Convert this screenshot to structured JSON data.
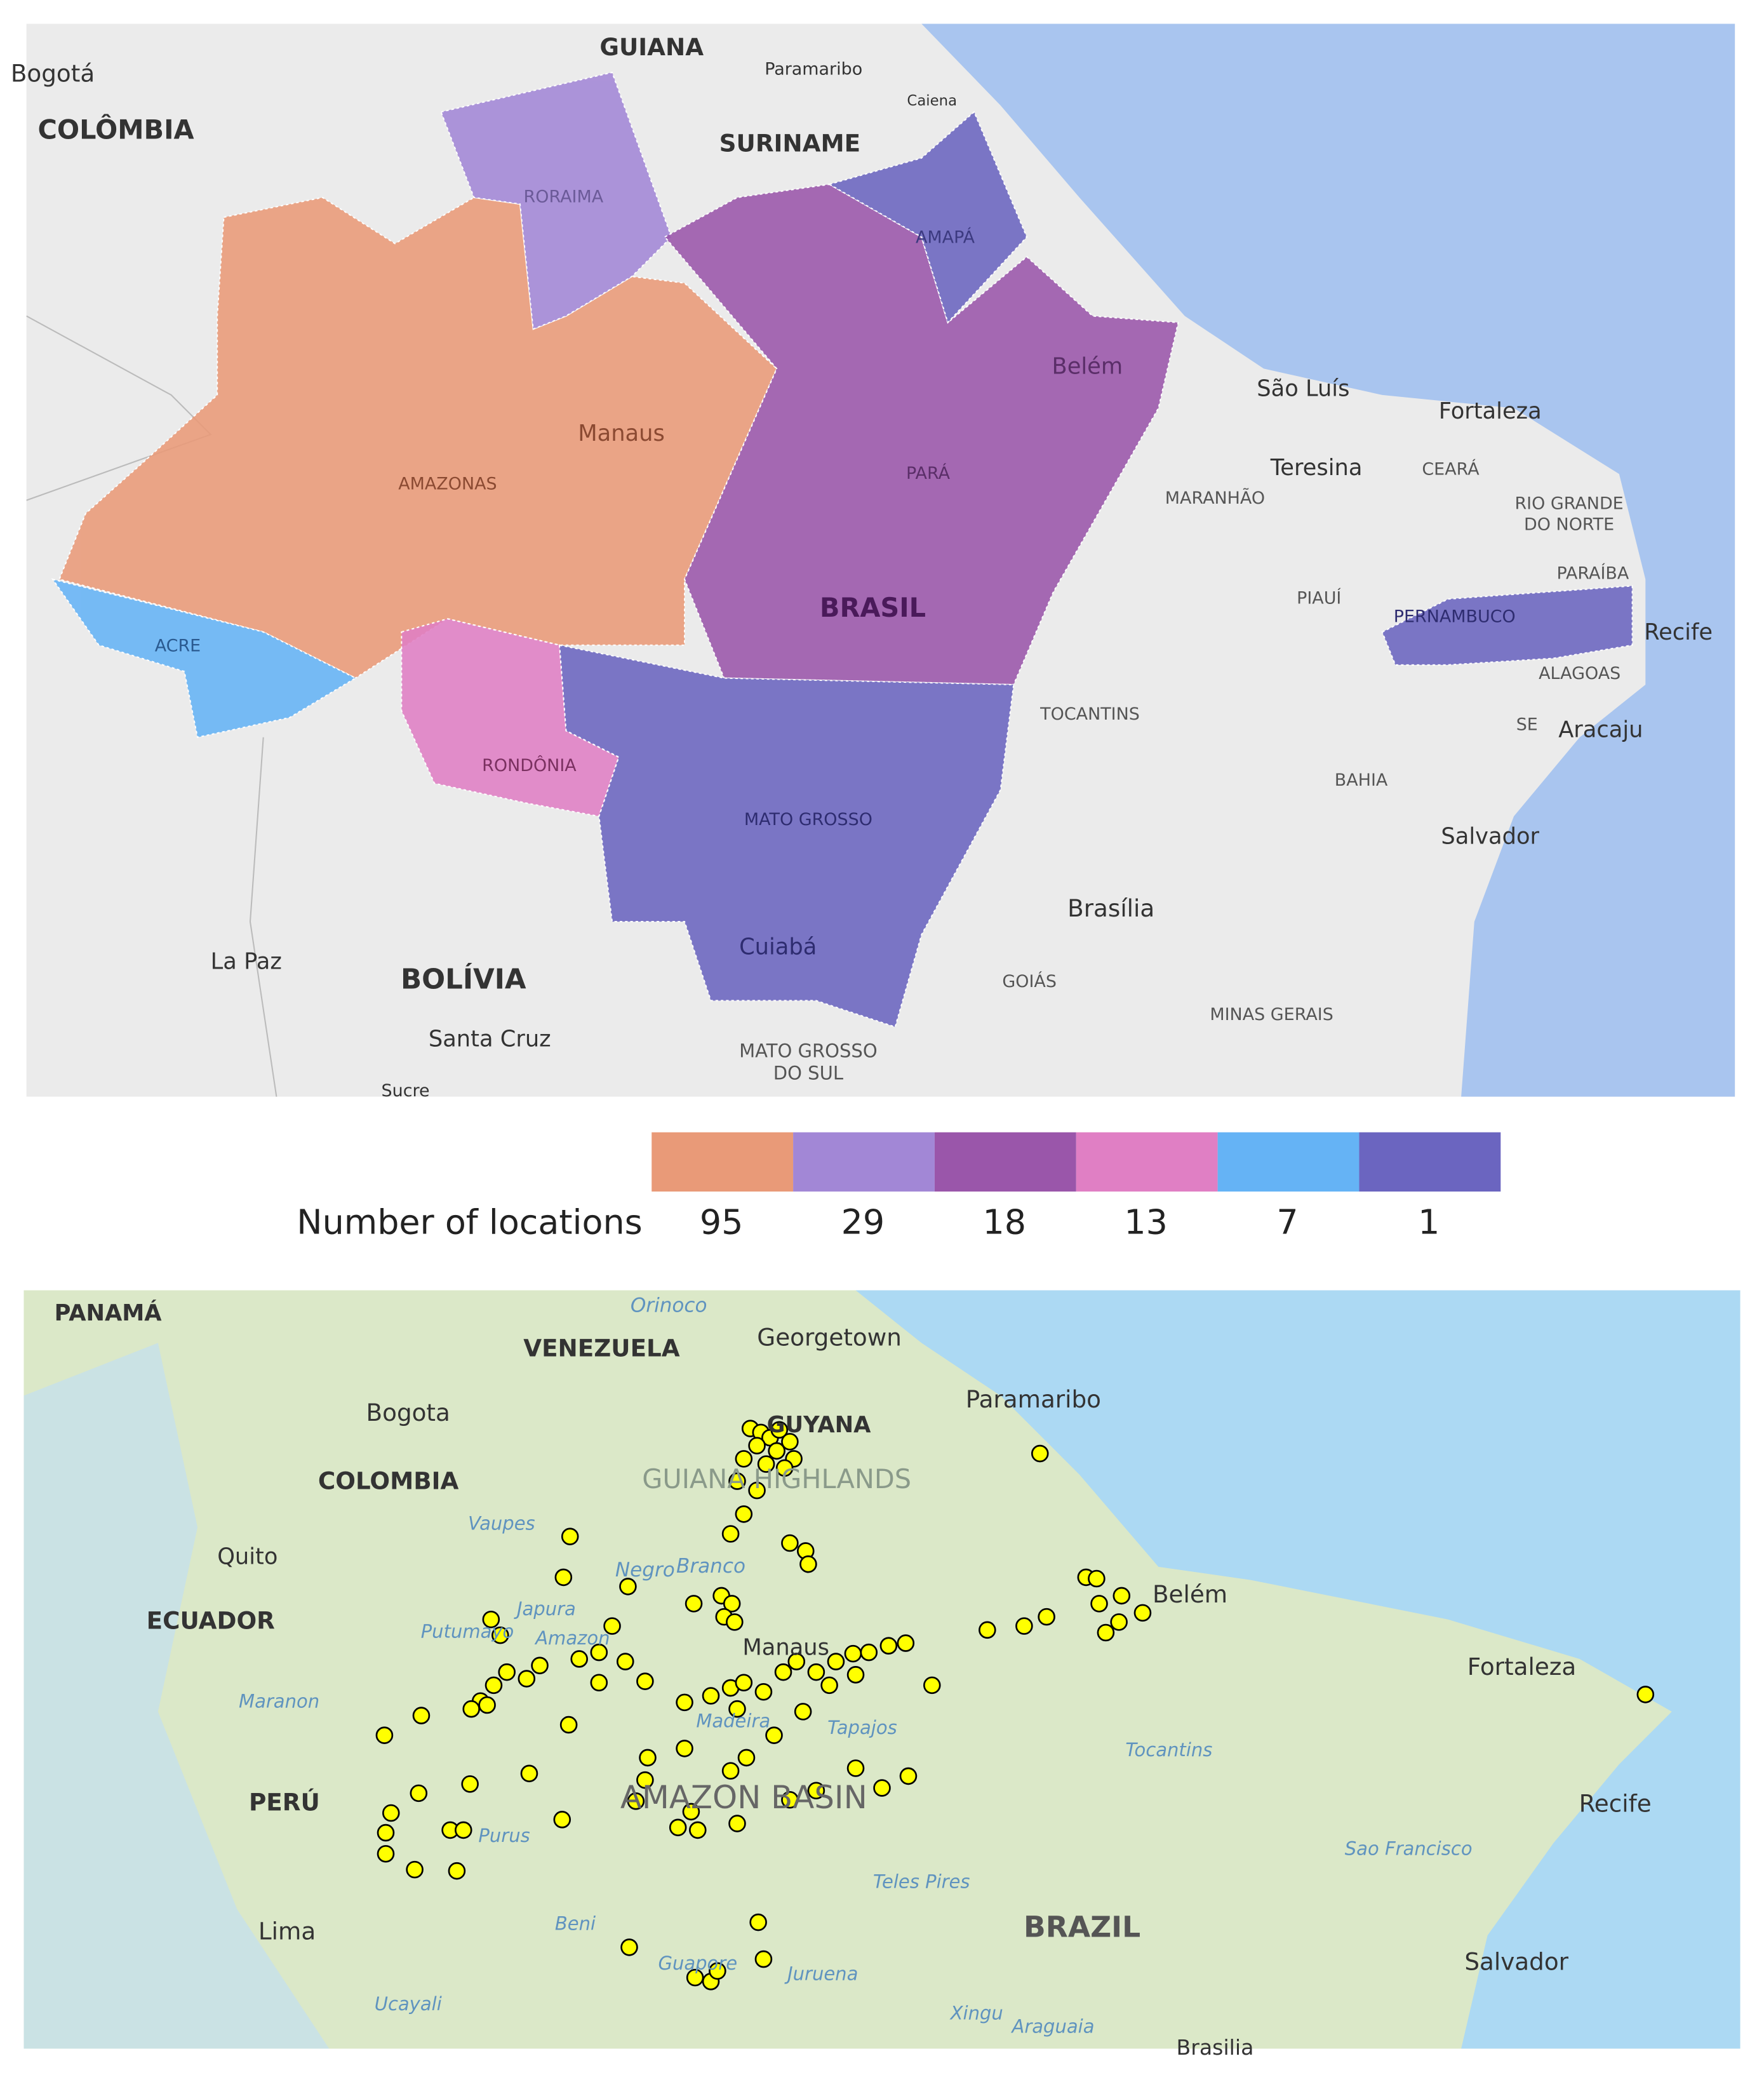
{
  "top_map": {
    "labels": [
      {
        "text": "Bogotá"
      },
      {
        "text": "GUIANA"
      },
      {
        "text": "Paramaribo"
      },
      {
        "text": "COLÔMBIA"
      },
      {
        "text": "SURINAME"
      },
      {
        "text": "Caiena"
      },
      {
        "text": "RORAIMA"
      },
      {
        "text": "AMAPÁ"
      },
      {
        "text": "Belém"
      },
      {
        "text": "São Luís"
      },
      {
        "text": "Fortaleza"
      },
      {
        "text": "Manaus"
      },
      {
        "text": "PARÁ"
      },
      {
        "text": "AMAZONAS"
      },
      {
        "text": "Teresina"
      },
      {
        "text": "CEARÁ"
      },
      {
        "text": "MARANHÃO"
      },
      {
        "text": "RIO GRANDE"
      },
      {
        "text": "DO NORTE"
      },
      {
        "text": "PARAÍBA"
      },
      {
        "text": "PIAUÍ"
      },
      {
        "text": "BRASIL"
      },
      {
        "text": "PERNAMBUCO"
      },
      {
        "text": "Recife"
      },
      {
        "text": "ACRE"
      },
      {
        "text": "ALAGOAS"
      },
      {
        "text": "TOCANTINS"
      },
      {
        "text": "SE"
      },
      {
        "text": "Aracaju"
      },
      {
        "text": "RONDÔNIA"
      },
      {
        "text": "BAHIA"
      },
      {
        "text": "MATO GROSSO"
      },
      {
        "text": "Salvador"
      },
      {
        "text": "Brasília"
      },
      {
        "text": "La Paz"
      },
      {
        "text": "BOLÍVIA"
      },
      {
        "text": "Cuiabá"
      },
      {
        "text": "GOIÁS"
      },
      {
        "text": "MINAS GERAIS"
      },
      {
        "text": "Santa Cruz"
      },
      {
        "text": "MATO GROSSO"
      },
      {
        "text": "DO SUL"
      },
      {
        "text": "Sucre"
      }
    ],
    "legend": {
      "title": "Number of locations",
      "items": [
        {
          "value": 95,
          "color": "#e99a78"
        },
        {
          "value": 29,
          "color": "#a287d6"
        },
        {
          "value": 18,
          "color": "#9a56aa"
        },
        {
          "value": 13,
          "color": "#e07fc4"
        },
        {
          "value": 7,
          "color": "#65b3f5"
        },
        {
          "value": 1,
          "color": "#6b65c0"
        }
      ]
    }
  },
  "bottom_map": {
    "labels": [
      {
        "text": "PANAMÁ"
      },
      {
        "text": "Orinoco"
      },
      {
        "text": "VENEZUELA"
      },
      {
        "text": "Georgetown"
      },
      {
        "text": "Paramaribo"
      },
      {
        "text": "Bogota"
      },
      {
        "text": "GUYANA"
      },
      {
        "text": "COLOMBIA"
      },
      {
        "text": "GUIANA HIGHLANDS"
      },
      {
        "text": "Vaupes"
      },
      {
        "text": "Negro"
      },
      {
        "text": "Branco"
      },
      {
        "text": "Quito"
      },
      {
        "text": "ECUADOR"
      },
      {
        "text": "Japura"
      },
      {
        "text": "Putumayo"
      },
      {
        "text": "Amazon"
      },
      {
        "text": "Manaus"
      },
      {
        "text": "Belém"
      },
      {
        "text": "Fortaleza"
      },
      {
        "text": "Maranon"
      },
      {
        "text": "Tocantins"
      },
      {
        "text": "PERÚ"
      },
      {
        "text": "AMAZON BASIN"
      },
      {
        "text": "Purus"
      },
      {
        "text": "Madeira"
      },
      {
        "text": "Tapajos"
      },
      {
        "text": "Recife"
      },
      {
        "text": "Teles Pires"
      },
      {
        "text": "Sao Francisco"
      },
      {
        "text": "Lima"
      },
      {
        "text": "Beni"
      },
      {
        "text": "Guapore"
      },
      {
        "text": "Juruena"
      },
      {
        "text": "BRAZIL"
      },
      {
        "text": "Xingu"
      },
      {
        "text": "Araguaia"
      },
      {
        "text": "Salvador"
      },
      {
        "text": "Ucayali"
      },
      {
        "text": "Brasilia"
      }
    ]
  }
}
